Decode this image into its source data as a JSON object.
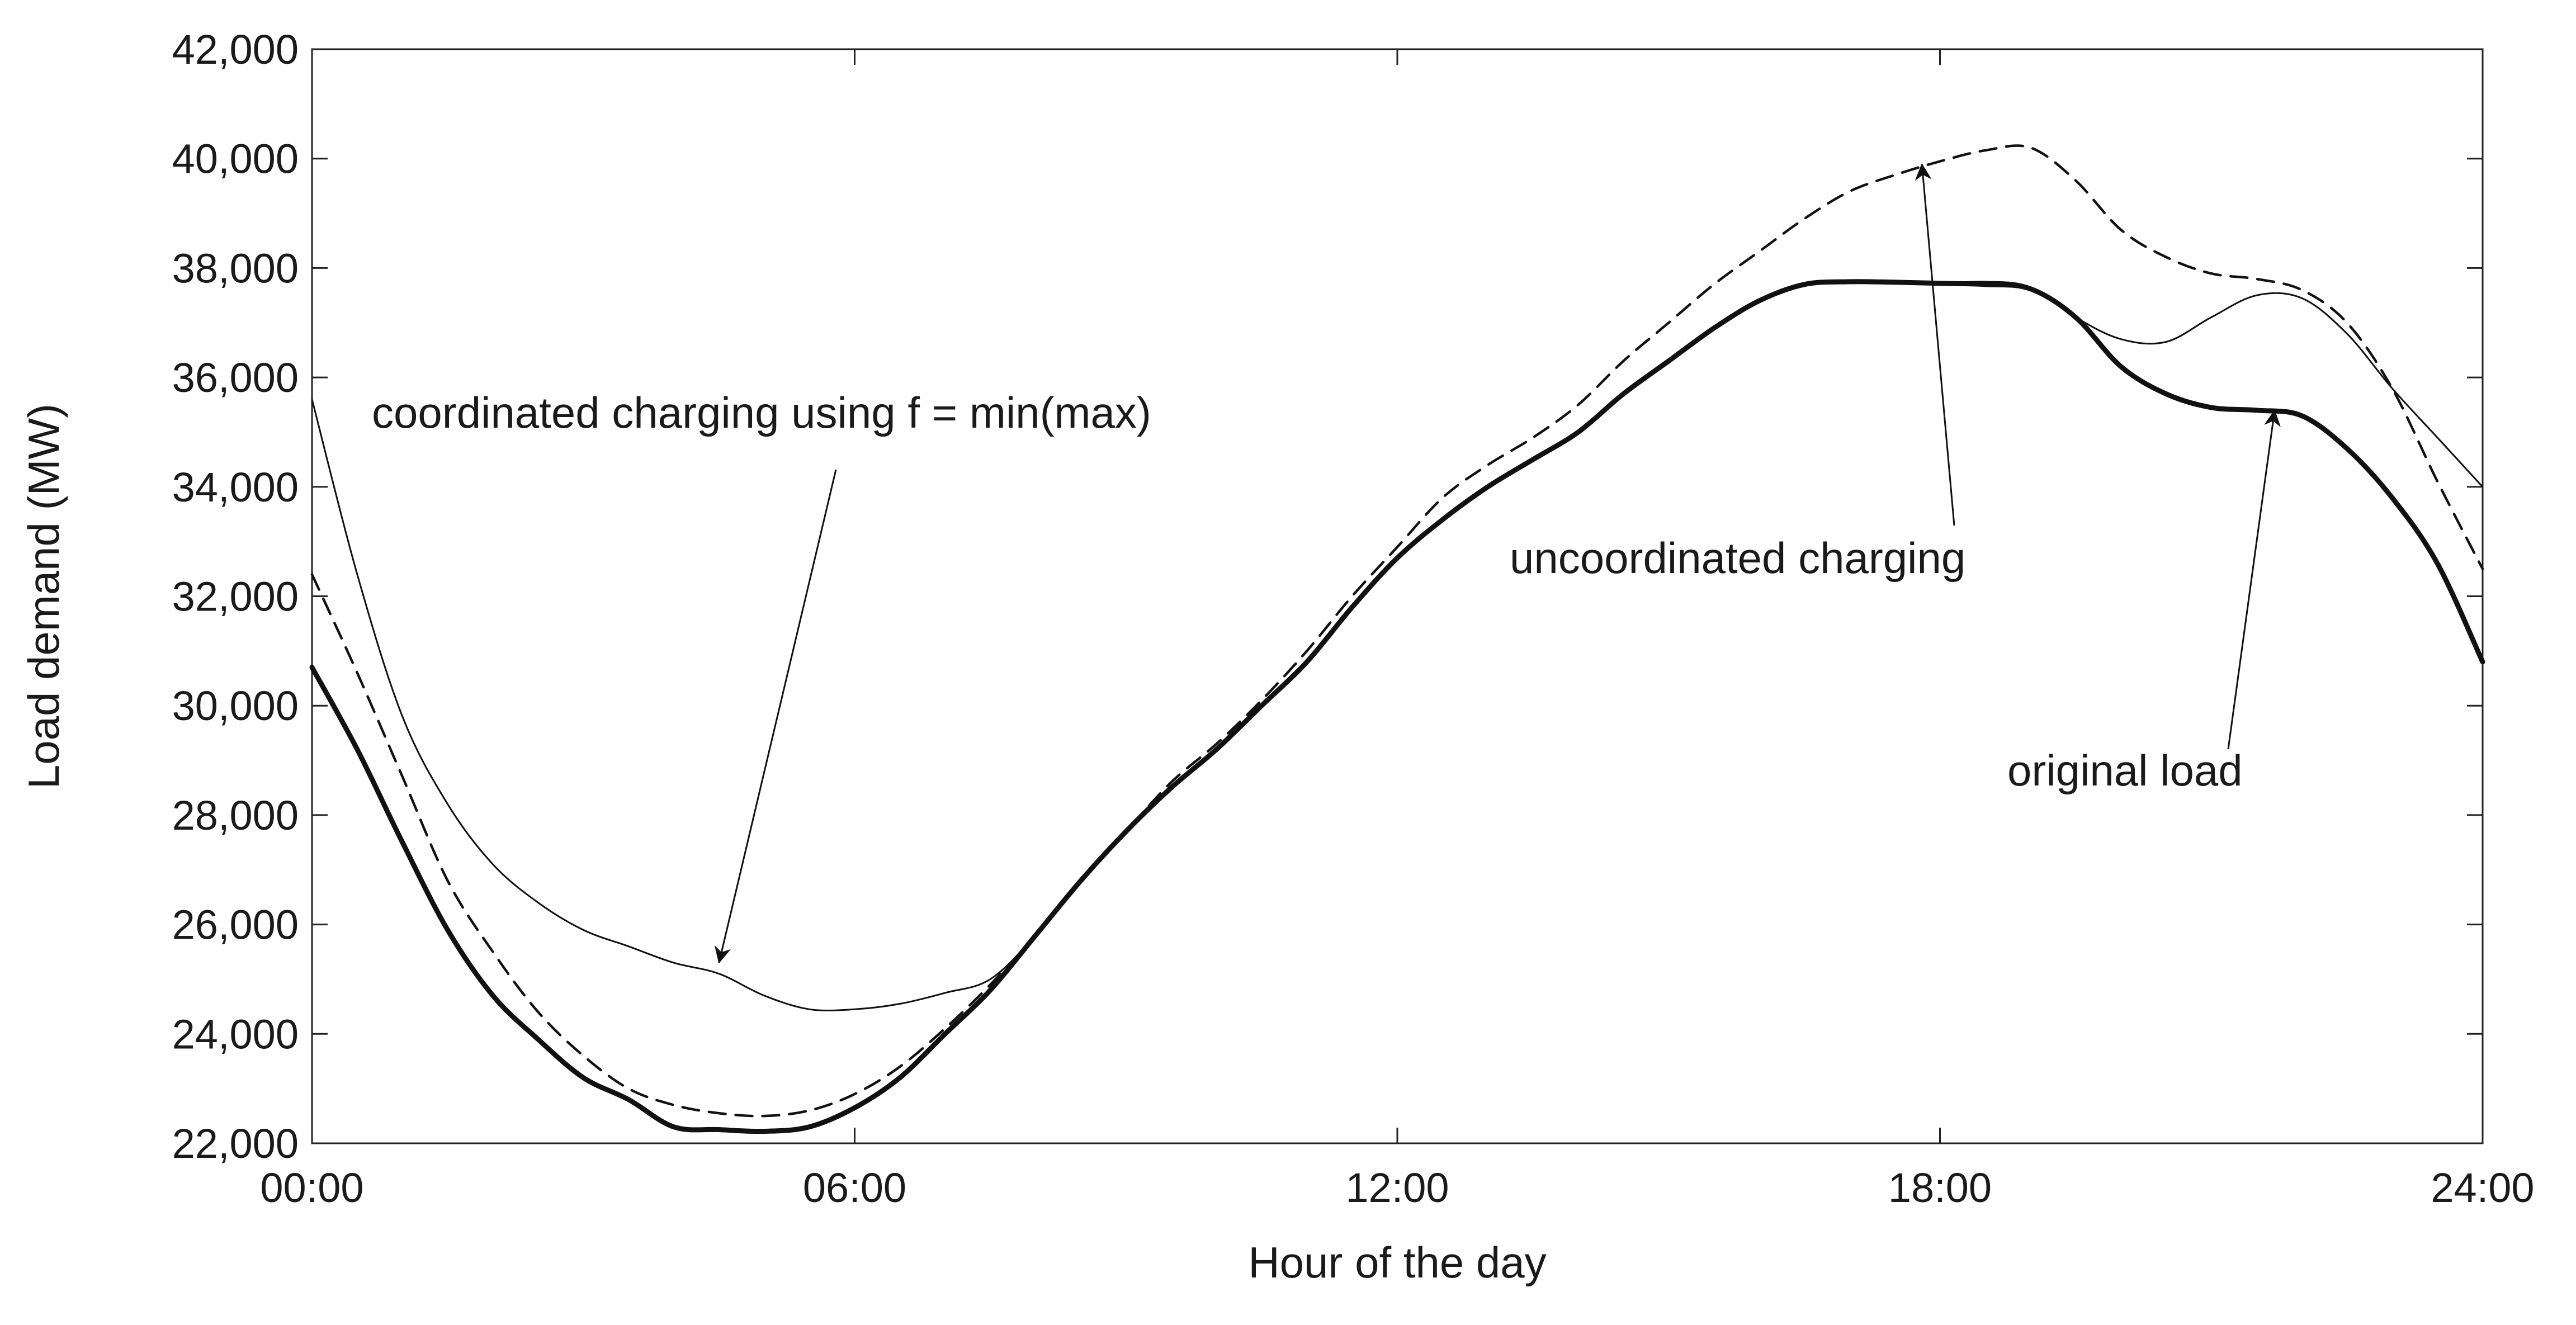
{
  "chart_data": {
    "type": "line",
    "title": "",
    "xlabel": "Hour of the day",
    "ylabel": "Load demand (MW)",
    "xlim": [
      0,
      24
    ],
    "ylim": [
      22000,
      42000
    ],
    "x_ticks": [
      {
        "value": 0,
        "label": "00:00"
      },
      {
        "value": 6,
        "label": "06:00"
      },
      {
        "value": 12,
        "label": "12:00"
      },
      {
        "value": 18,
        "label": "18:00"
      },
      {
        "value": 24,
        "label": "24:00"
      }
    ],
    "y_ticks": [
      {
        "value": 22000,
        "label": "22,000"
      },
      {
        "value": 24000,
        "label": "24,000"
      },
      {
        "value": 26000,
        "label": "26,000"
      },
      {
        "value": 28000,
        "label": "28,000"
      },
      {
        "value": 30000,
        "label": "30,000"
      },
      {
        "value": 32000,
        "label": "32,000"
      },
      {
        "value": 34000,
        "label": "34,000"
      },
      {
        "value": 36000,
        "label": "36,000"
      },
      {
        "value": 38000,
        "label": "38,000"
      },
      {
        "value": 40000,
        "label": "40,000"
      },
      {
        "value": 42000,
        "label": "42,000"
      }
    ],
    "grid": false,
    "series": [
      {
        "name": "original load",
        "style": "thick",
        "color": "#111111",
        "x": [
          0,
          0.5,
          1,
          1.5,
          2,
          2.5,
          3,
          3.5,
          4,
          4.5,
          5,
          5.5,
          6,
          6.5,
          7,
          7.5,
          8,
          8.5,
          9,
          9.5,
          10,
          10.5,
          11,
          11.5,
          12,
          12.5,
          13,
          13.5,
          14,
          14.5,
          15,
          15.5,
          16,
          16.5,
          17,
          17.5,
          18,
          18.5,
          19,
          19.5,
          20,
          20.5,
          21,
          21.5,
          22,
          22.5,
          23,
          23.5,
          24
        ],
        "values": [
          30700,
          29200,
          27500,
          25900,
          24700,
          23900,
          23200,
          22800,
          22300,
          22250,
          22220,
          22300,
          22650,
          23200,
          24000,
          24800,
          25800,
          26800,
          27700,
          28500,
          29200,
          30000,
          30800,
          31800,
          32700,
          33400,
          34000,
          34500,
          35000,
          35700,
          36300,
          36900,
          37400,
          37700,
          37750,
          37740,
          37720,
          37700,
          37620,
          37100,
          36200,
          35700,
          35450,
          35400,
          35300,
          34700,
          33800,
          32600,
          30800
        ]
      },
      {
        "name": "uncoordinated charging",
        "style": "dashed",
        "color": "#111111",
        "x": [
          0,
          0.5,
          1,
          1.5,
          2,
          2.5,
          3,
          3.5,
          4,
          4.5,
          5,
          5.5,
          6,
          6.5,
          7,
          7.5,
          8,
          8.5,
          9,
          9.5,
          10,
          10.5,
          11,
          11.5,
          12,
          12.5,
          13,
          13.5,
          14,
          14.5,
          15,
          15.5,
          16,
          16.5,
          17,
          17.5,
          18,
          18.5,
          19,
          19.5,
          20,
          20.5,
          21,
          21.5,
          22,
          22.5,
          23,
          23.5,
          24
        ],
        "values": [
          32400,
          30600,
          28700,
          26800,
          25500,
          24400,
          23600,
          23000,
          22700,
          22550,
          22500,
          22600,
          22900,
          23400,
          24100,
          24900,
          25800,
          26800,
          27700,
          28600,
          29300,
          30100,
          31000,
          32000,
          32900,
          33800,
          34400,
          34900,
          35500,
          36300,
          37000,
          37700,
          38300,
          38900,
          39400,
          39700,
          39950,
          40150,
          40200,
          39600,
          38700,
          38200,
          37900,
          37800,
          37600,
          37000,
          35800,
          34100,
          32500
        ]
      },
      {
        "name": "coordinated charging using f = min(max)",
        "style": "thin",
        "color": "#111111",
        "x": [
          0,
          0.5,
          1,
          1.5,
          2,
          2.5,
          3,
          3.5,
          4,
          4.5,
          5,
          5.5,
          6,
          6.5,
          7,
          7.5,
          8,
          8.5,
          9,
          9.5,
          10,
          10.5,
          11,
          11.5,
          12,
          12.5,
          13,
          13.5,
          14,
          14.5,
          15,
          15.5,
          16,
          16.5,
          17,
          17.5,
          18,
          18.5,
          19,
          19.5,
          20,
          20.5,
          21,
          21.5,
          22,
          22.5,
          23,
          23.5,
          24
        ],
        "values": [
          35600,
          32400,
          29800,
          28200,
          27100,
          26400,
          25900,
          25600,
          25300,
          25100,
          24700,
          24450,
          24450,
          24550,
          24750,
          25000,
          25800,
          26800,
          27700,
          28500,
          29200,
          30000,
          30800,
          31800,
          32700,
          33400,
          34000,
          34500,
          35000,
          35700,
          36300,
          36900,
          37400,
          37700,
          37750,
          37740,
          37720,
          37750,
          37650,
          37100,
          36700,
          36650,
          37100,
          37500,
          37450,
          36800,
          35800,
          34900,
          34000
        ]
      }
    ],
    "annotations": [
      {
        "id": "coordinated",
        "text": "coordinated charging using f = min(max)",
        "arrow_to": [
          4.5,
          25300
        ]
      },
      {
        "id": "uncoordinated",
        "text": "uncoordinated charging",
        "arrow_to": [
          17.8,
          39900
        ]
      },
      {
        "id": "original",
        "text": "original load",
        "arrow_to": [
          21.7,
          35400
        ]
      }
    ]
  }
}
